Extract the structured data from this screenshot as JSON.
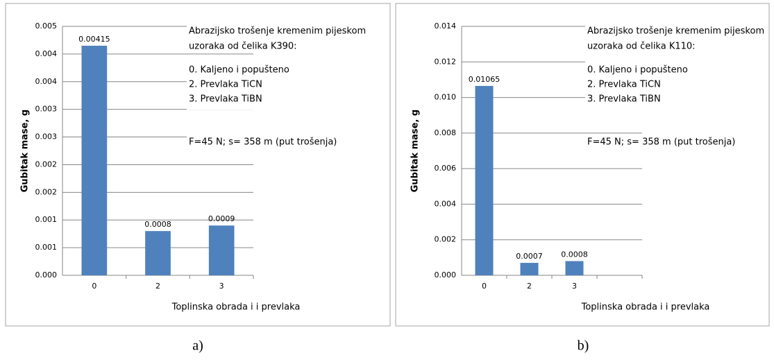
{
  "chart_data": [
    {
      "type": "bar",
      "ylabel": "Gubitak mase, g",
      "xlabel": "Toplinska obrada i i prevlaka",
      "annotation": {
        "heading": [
          "Abrazijsko trošenje kremenim pijeskom",
          "uzoraka od čelika K390:"
        ],
        "items": [
          "0. Kaljeno i popušteno",
          "2. Prevlaka TiCN",
          "3. Prevlaka TiBN"
        ],
        "note": "F=45 N; s= 358 m (put trošenja)"
      },
      "categories": [
        "0",
        "2",
        "3"
      ],
      "values": [
        0.00415,
        0.0008,
        0.0009
      ],
      "color": "#4f81bd",
      "ylim": [
        0,
        0.0045
      ],
      "yticks": [
        {
          "value": 0,
          "label": "0.000"
        },
        {
          "value": 0.0005,
          "label": "0.001"
        },
        {
          "value": 0.001,
          "label": "0.001"
        },
        {
          "value": 0.0015,
          "label": "0.002"
        },
        {
          "value": 0.002,
          "label": "0.002"
        },
        {
          "value": 0.0025,
          "label": "0.003"
        },
        {
          "value": 0.003,
          "label": "0.003"
        },
        {
          "value": 0.0035,
          "label": "0.004"
        },
        {
          "value": 0.004,
          "label": "0.004"
        },
        {
          "value": 0.0045,
          "label": "0.005"
        }
      ],
      "grid": true,
      "caption": "a)"
    },
    {
      "type": "bar",
      "ylabel": "Gubitak mase, g",
      "xlabel": "Toplinska obrada i i prevlaka",
      "annotation": {
        "heading": [
          "Abrazijsko trošenje kremenim pijeskom",
          "uzoraka od čelika K110:"
        ],
        "items": [
          "0. Kaljeno i popušteno",
          "2. Prevlaka TiCN",
          "3. Prevlaka TiBN"
        ],
        "note": "F=45 N; s= 358 m (put trošenja)"
      },
      "categories": [
        "0",
        "2",
        "3",
        null
      ],
      "values": [
        0.01065,
        0.0007,
        0.0008,
        null
      ],
      "color": "#4f81bd",
      "ylim": [
        0,
        0.014
      ],
      "yticks": [
        {
          "value": 0,
          "label": "0.000"
        },
        {
          "value": 0.002,
          "label": "0.002"
        },
        {
          "value": 0.004,
          "label": "0.004"
        },
        {
          "value": 0.006,
          "label": "0.006"
        },
        {
          "value": 0.008,
          "label": "0.008"
        },
        {
          "value": 0.01,
          "label": "0.010"
        },
        {
          "value": 0.012,
          "label": "0.012"
        },
        {
          "value": 0.014,
          "label": "0.014"
        }
      ],
      "grid": true,
      "caption": "b)"
    }
  ]
}
